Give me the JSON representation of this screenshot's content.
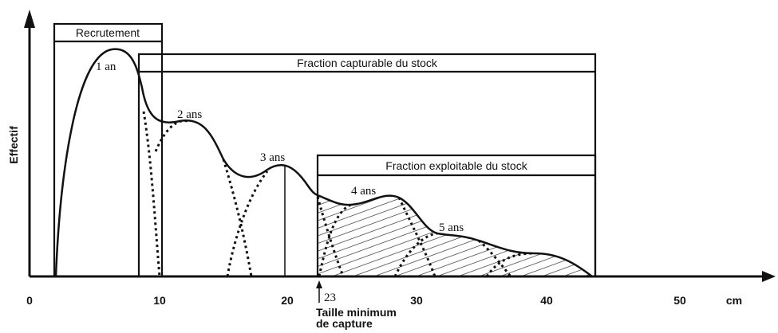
{
  "y_axis_label": "Effectif",
  "x_axis": {
    "ticks": [
      "0",
      "10",
      "20",
      "30",
      "40",
      "50"
    ],
    "unit": "cm"
  },
  "boxes": {
    "recruitment": "Recrutement",
    "catchable": "Fraction capturable du stock",
    "exploitable": "Fraction exploitable du stock"
  },
  "cohorts": [
    "1 an",
    "2 ans",
    "3 ans",
    "4 ans",
    "5 ans"
  ],
  "minimum_size": {
    "value": "23",
    "label_lines": [
      "Taille minimum",
      "de capture"
    ]
  }
}
